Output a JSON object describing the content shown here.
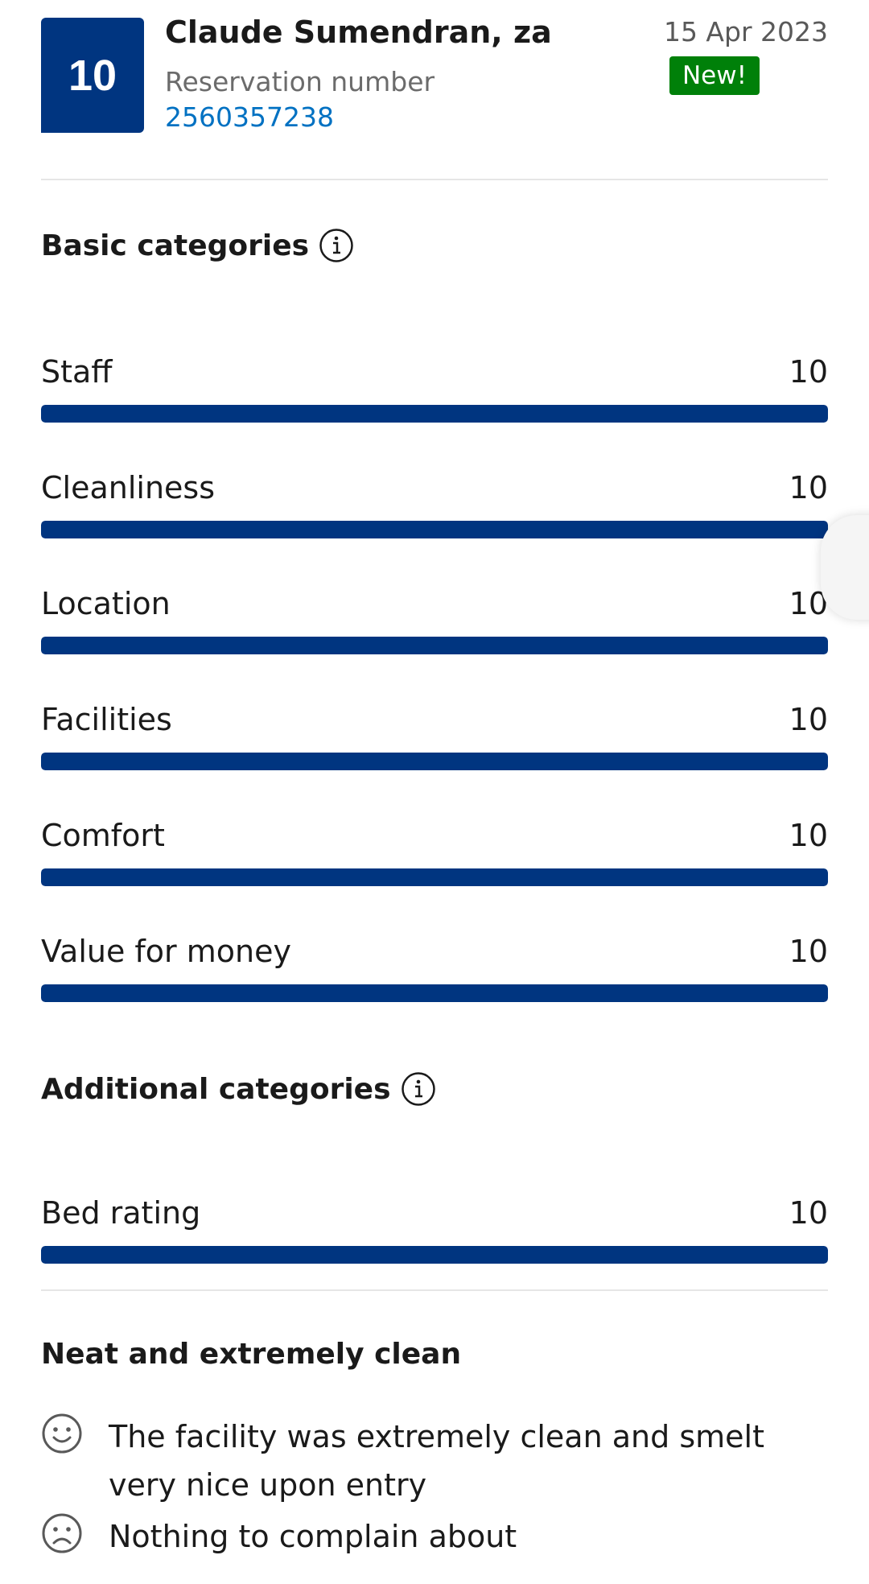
{
  "review": {
    "score": "10",
    "guest_name": "Claude Sumendran, za",
    "reservation_label": "Reservation number",
    "reservation_number": "2560357238",
    "date": "15 Apr 2023",
    "badge": "New!"
  },
  "basic": {
    "title": "Basic categories",
    "items": [
      {
        "label": "Staff",
        "score": "10",
        "fraction": 1.0
      },
      {
        "label": "Cleanliness",
        "score": "10",
        "fraction": 1.0
      },
      {
        "label": "Location",
        "score": "10",
        "fraction": 1.0
      },
      {
        "label": "Facilities",
        "score": "10",
        "fraction": 1.0
      },
      {
        "label": "Comfort",
        "score": "10",
        "fraction": 1.0
      },
      {
        "label": "Value for money",
        "score": "10",
        "fraction": 1.0
      }
    ]
  },
  "additional": {
    "title": "Additional categories",
    "items": [
      {
        "label": "Bed rating",
        "score": "10",
        "fraction": 1.0
      }
    ]
  },
  "comment": {
    "title": "Neat and extremely clean",
    "positive": "The facility was extremely clean and smelt very nice upon entry",
    "negative": "Nothing to complain about",
    "positive_icon": "smile-icon",
    "negative_icon": "frown-icon"
  },
  "colors": {
    "brand": "#003580",
    "link": "#0071c2",
    "badge": "#008009"
  }
}
